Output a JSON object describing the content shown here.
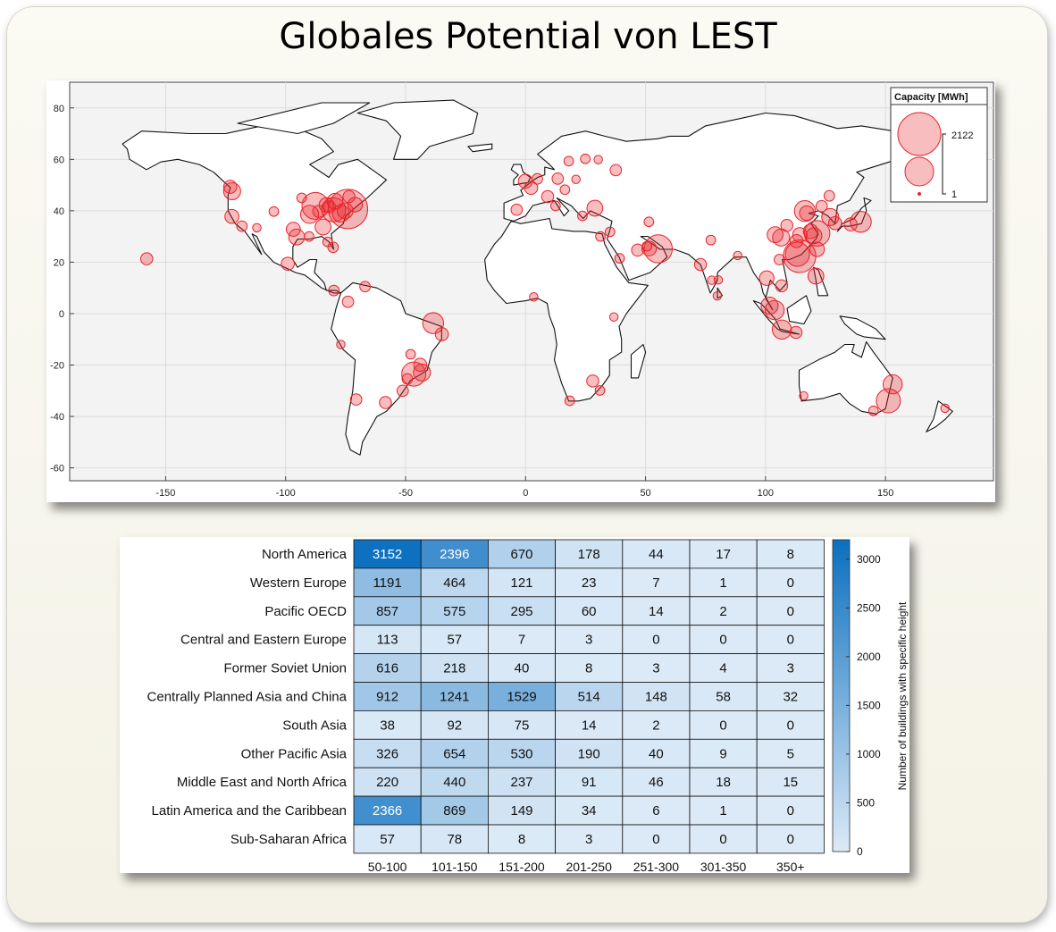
{
  "title": "Globales Potential von LEST",
  "map": {
    "legend_title": "Capacity [MWh]",
    "legend_max": "2122",
    "legend_min": "1",
    "x_ticks": [
      -150,
      -100,
      -50,
      0,
      50,
      100,
      150
    ],
    "y_ticks": [
      80,
      60,
      40,
      20,
      0,
      -20,
      -40,
      -60
    ],
    "marker_color": "#e8232a"
  },
  "chart_data": [
    {
      "type": "scatter",
      "title": "",
      "xlim": [
        -190,
        195
      ],
      "ylim": [
        -65,
        90
      ],
      "size_label": "Capacity [MWh]",
      "size_range": [
        1,
        2122
      ],
      "points": [
        {
          "lon": -74,
          "lat": 40.7,
          "size": 2122
        },
        {
          "lon": -87.6,
          "lat": 41.9,
          "size": 900
        },
        {
          "lon": -80,
          "lat": 40.4,
          "size": 700
        },
        {
          "lon": -90,
          "lat": 38.6,
          "size": 350
        },
        {
          "lon": -84.4,
          "lat": 33.7,
          "size": 250
        },
        {
          "lon": -95.4,
          "lat": 29.8,
          "size": 250
        },
        {
          "lon": -122.3,
          "lat": 47.6,
          "size": 300
        },
        {
          "lon": -122.4,
          "lat": 37.8,
          "size": 180
        },
        {
          "lon": -118.2,
          "lat": 34.0,
          "size": 80
        },
        {
          "lon": -104.9,
          "lat": 39.7,
          "size": 60
        },
        {
          "lon": -80.2,
          "lat": 25.8,
          "size": 80
        },
        {
          "lon": -96.8,
          "lat": 32.8,
          "size": 180
        },
        {
          "lon": -99.1,
          "lat": 19.4,
          "size": 150
        },
        {
          "lon": -157.9,
          "lat": 21.3,
          "size": 120
        },
        {
          "lon": -77,
          "lat": 38.9,
          "size": 300
        },
        {
          "lon": -71,
          "lat": 42.4,
          "size": 200
        },
        {
          "lon": -79.4,
          "lat": 43.7,
          "size": 250
        },
        {
          "lon": -73.6,
          "lat": 45.5,
          "size": 120
        },
        {
          "lon": -123.1,
          "lat": 49.3,
          "size": 150
        },
        {
          "lon": -93.3,
          "lat": 45,
          "size": 60
        },
        {
          "lon": -82.5,
          "lat": 27.9,
          "size": 60
        },
        {
          "lon": -81.7,
          "lat": 41.5,
          "size": 120
        },
        {
          "lon": -83,
          "lat": 42.3,
          "size": 200
        },
        {
          "lon": -86.2,
          "lat": 39.8,
          "size": 120
        },
        {
          "lon": -90.2,
          "lat": 30,
          "size": 60
        },
        {
          "lon": -75.2,
          "lat": 40,
          "size": 250
        },
        {
          "lon": -112,
          "lat": 33.4,
          "size": 40
        },
        {
          "lon": -79.9,
          "lat": 9,
          "size": 80
        },
        {
          "lon": -74,
          "lat": 4.6,
          "size": 100
        },
        {
          "lon": -66.9,
          "lat": 10.5,
          "size": 80
        },
        {
          "lon": -77,
          "lat": -12,
          "size": 40
        },
        {
          "lon": -70.6,
          "lat": -33.4,
          "size": 100
        },
        {
          "lon": -58.4,
          "lat": -34.6,
          "size": 120
        },
        {
          "lon": -46.6,
          "lat": -23.5,
          "size": 700
        },
        {
          "lon": -43.2,
          "lat": -22.9,
          "size": 300
        },
        {
          "lon": -43.9,
          "lat": -19.9,
          "size": 150
        },
        {
          "lon": -47.9,
          "lat": -15.8,
          "size": 60
        },
        {
          "lon": -34.9,
          "lat": -8,
          "size": 150
        },
        {
          "lon": -38.5,
          "lat": -3.7,
          "size": 500
        },
        {
          "lon": -51.2,
          "lat": -30,
          "size": 100
        },
        {
          "lon": -49.3,
          "lat": -25.4,
          "size": 80
        },
        {
          "lon": -0.1,
          "lat": 51.5,
          "size": 180
        },
        {
          "lon": 2.3,
          "lat": 48.9,
          "size": 150
        },
        {
          "lon": 13.4,
          "lat": 52.5,
          "size": 100
        },
        {
          "lon": 9.2,
          "lat": 45.5,
          "size": 120
        },
        {
          "lon": -3.7,
          "lat": 40.4,
          "size": 100
        },
        {
          "lon": 12.5,
          "lat": 41.9,
          "size": 60
        },
        {
          "lon": 4.9,
          "lat": 52.4,
          "size": 80
        },
        {
          "lon": 28.9,
          "lat": 41,
          "size": 250
        },
        {
          "lon": 37.6,
          "lat": 55.8,
          "size": 100
        },
        {
          "lon": 30.3,
          "lat": 59.9,
          "size": 40
        },
        {
          "lon": 24.9,
          "lat": 60.2,
          "size": 60
        },
        {
          "lon": 18,
          "lat": 59.3,
          "size": 60
        },
        {
          "lon": 21,
          "lat": 52.2,
          "size": 40
        },
        {
          "lon": 16.4,
          "lat": 48.2,
          "size": 60
        },
        {
          "lon": 23.7,
          "lat": 38,
          "size": 60
        },
        {
          "lon": 55.3,
          "lat": 25.2,
          "size": 1000
        },
        {
          "lon": 51.5,
          "lat": 25.3,
          "size": 200
        },
        {
          "lon": 46.7,
          "lat": 24.7,
          "size": 120
        },
        {
          "lon": 50.6,
          "lat": 26.2,
          "size": 60
        },
        {
          "lon": 39.2,
          "lat": 21.5,
          "size": 60
        },
        {
          "lon": 35.2,
          "lat": 31.8,
          "size": 60
        },
        {
          "lon": 31.2,
          "lat": 30,
          "size": 60
        },
        {
          "lon": 51.4,
          "lat": 35.7,
          "size": 60
        },
        {
          "lon": 72.9,
          "lat": 19.1,
          "size": 120
        },
        {
          "lon": 77.2,
          "lat": 28.6,
          "size": 60
        },
        {
          "lon": 77.6,
          "lat": 13,
          "size": 40
        },
        {
          "lon": 80.3,
          "lat": 13.1,
          "size": 40
        },
        {
          "lon": 88.4,
          "lat": 22.6,
          "size": 40
        },
        {
          "lon": 79.9,
          "lat": 6.9,
          "size": 40
        },
        {
          "lon": 3.4,
          "lat": 6.5,
          "size": 40
        },
        {
          "lon": 36.8,
          "lat": -1.3,
          "size": 40
        },
        {
          "lon": 28,
          "lat": -26.2,
          "size": 120
        },
        {
          "lon": 18.4,
          "lat": -33.9,
          "size": 60
        },
        {
          "lon": 31,
          "lat": -29.9,
          "size": 60
        },
        {
          "lon": 114.2,
          "lat": 22.3,
          "size": 1400
        },
        {
          "lon": 121.5,
          "lat": 31.2,
          "size": 800
        },
        {
          "lon": 116.4,
          "lat": 39.9,
          "size": 500
        },
        {
          "lon": 113.3,
          "lat": 23.1,
          "size": 700
        },
        {
          "lon": 106.5,
          "lat": 29.6,
          "size": 300
        },
        {
          "lon": 104,
          "lat": 30.7,
          "size": 250
        },
        {
          "lon": 120.2,
          "lat": 30.3,
          "size": 250
        },
        {
          "lon": 118.8,
          "lat": 32,
          "size": 200
        },
        {
          "lon": 117.2,
          "lat": 39.1,
          "size": 200
        },
        {
          "lon": 114.3,
          "lat": 30.6,
          "size": 200
        },
        {
          "lon": 112.9,
          "lat": 28.2,
          "size": 150
        },
        {
          "lon": 108.9,
          "lat": 34.3,
          "size": 120
        },
        {
          "lon": 126.6,
          "lat": 45.8,
          "size": 80
        },
        {
          "lon": 123.4,
          "lat": 41.8,
          "size": 100
        },
        {
          "lon": 126.98,
          "lat": 37.57,
          "size": 300
        },
        {
          "lon": 129,
          "lat": 35.2,
          "size": 150
        },
        {
          "lon": 139.7,
          "lat": 35.7,
          "size": 500
        },
        {
          "lon": 135.5,
          "lat": 34.7,
          "size": 150
        },
        {
          "lon": 121.5,
          "lat": 25,
          "size": 200
        },
        {
          "lon": 121,
          "lat": 14.6,
          "size": 250
        },
        {
          "lon": 100.5,
          "lat": 13.8,
          "size": 200
        },
        {
          "lon": 106.7,
          "lat": 10.8,
          "size": 120
        },
        {
          "lon": 105.8,
          "lat": 21,
          "size": 80
        },
        {
          "lon": 103.8,
          "lat": 1.35,
          "size": 400
        },
        {
          "lon": 101.7,
          "lat": 3.1,
          "size": 300
        },
        {
          "lon": 106.8,
          "lat": -6.2,
          "size": 400
        },
        {
          "lon": 112.7,
          "lat": -7.3,
          "size": 120
        },
        {
          "lon": 151.2,
          "lat": -33.9,
          "size": 700
        },
        {
          "lon": 153,
          "lat": -27.5,
          "size": 400
        },
        {
          "lon": 145,
          "lat": -37.8,
          "size": 60
        },
        {
          "lon": 115.9,
          "lat": -32,
          "size": 40
        },
        {
          "lon": 174.8,
          "lat": -36.8,
          "size": 40
        }
      ]
    },
    {
      "type": "heatmap",
      "title": "",
      "xlabel": "",
      "ylabel": "",
      "rows": [
        "North America",
        "Western Europe",
        "Pacific OECD",
        "Central and Eastern Europe",
        "Former Soviet Union",
        "Centrally Planned Asia and China",
        "South Asia",
        "Other Pacific Asia",
        "Middle East and North Africa",
        "Latin America and the Caribbean",
        "Sub-Saharan Africa"
      ],
      "columns": [
        "50-100",
        "101-150",
        "151-200",
        "201-250",
        "251-300",
        "301-350",
        "350+"
      ],
      "values": [
        [
          3152,
          2396,
          670,
          178,
          44,
          17,
          8
        ],
        [
          1191,
          464,
          121,
          23,
          7,
          1,
          0
        ],
        [
          857,
          575,
          295,
          60,
          14,
          2,
          0
        ],
        [
          113,
          57,
          7,
          3,
          0,
          0,
          0
        ],
        [
          616,
          218,
          40,
          8,
          3,
          4,
          3
        ],
        [
          912,
          1241,
          1529,
          514,
          148,
          58,
          32
        ],
        [
          38,
          92,
          75,
          14,
          2,
          0,
          0
        ],
        [
          326,
          654,
          530,
          190,
          40,
          9,
          5
        ],
        [
          220,
          440,
          237,
          91,
          46,
          18,
          15
        ],
        [
          2366,
          869,
          149,
          34,
          6,
          1,
          0
        ],
        [
          57,
          78,
          8,
          3,
          0,
          0,
          0
        ]
      ],
      "colorbar": {
        "label": "Number of buildings with specific height",
        "ticks": [
          0,
          500,
          1000,
          1500,
          2000,
          2500,
          3000
        ],
        "range": [
          0,
          3200
        ],
        "color_low": "#dceaf7",
        "color_high": "#0b6fbf"
      }
    }
  ]
}
